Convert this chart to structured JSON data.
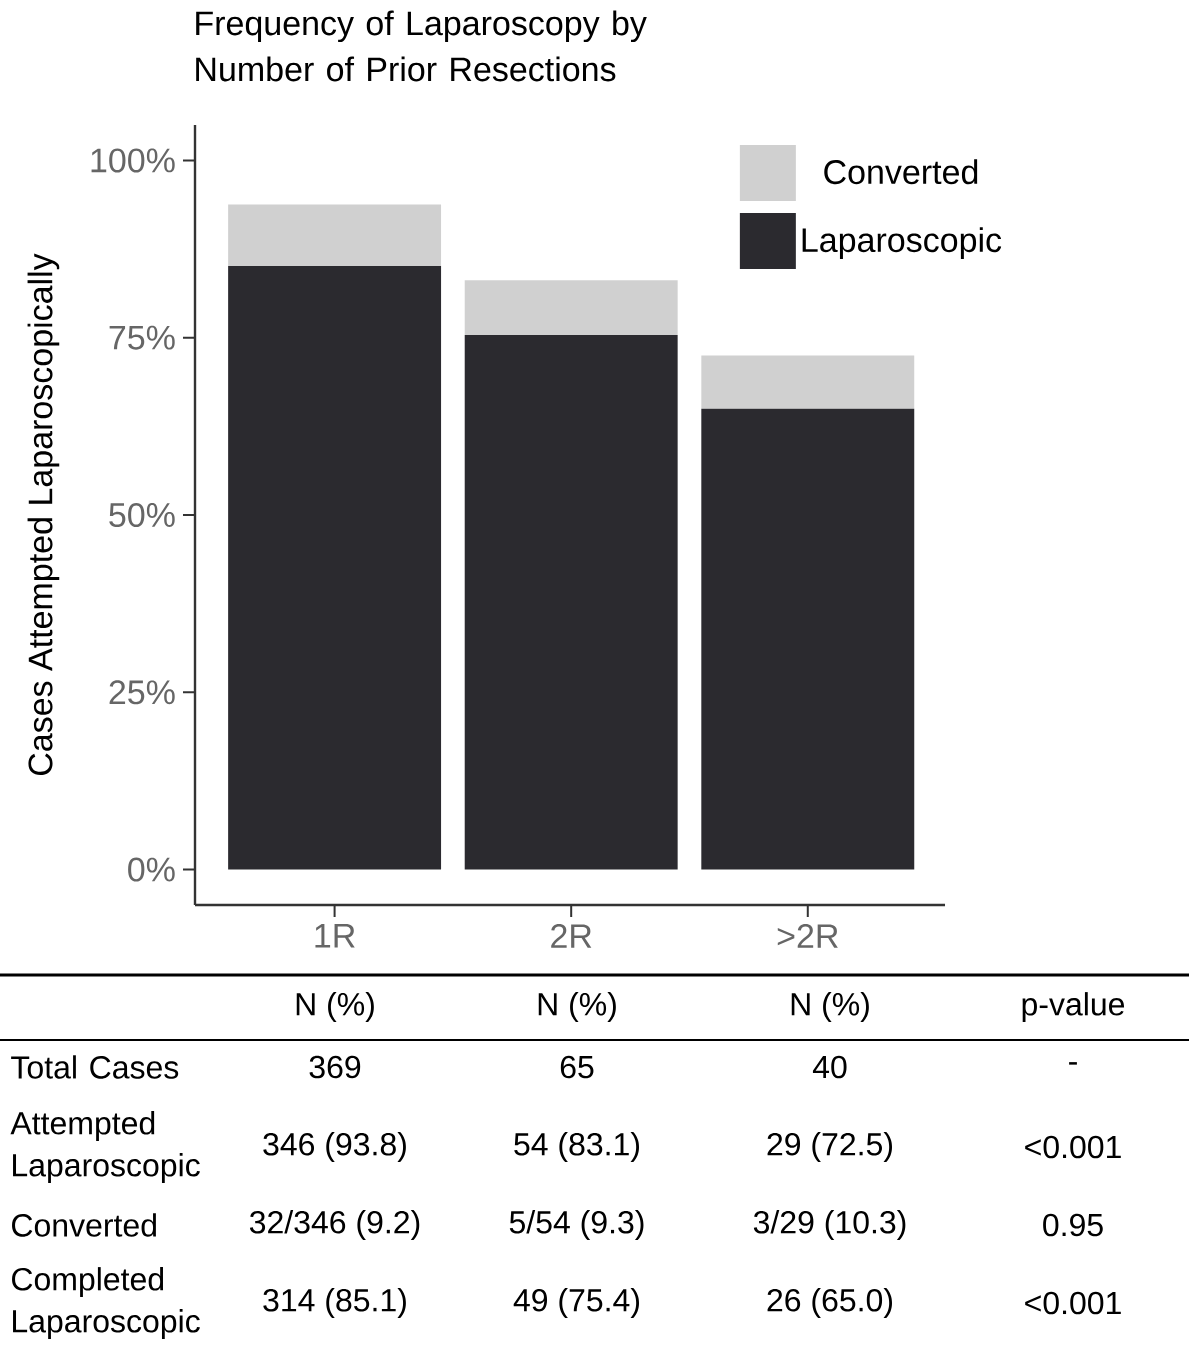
{
  "chart_data": {
    "type": "bar",
    "title": "Frequency of Laparoscopy by Number of Prior Resections",
    "ylabel": "Cases Attempted Laparoscopically",
    "categories": [
      "1R",
      "2R",
      ">2R"
    ],
    "stacked": true,
    "series": [
      {
        "name": "Laparoscopic",
        "color": "#2b2a2f",
        "values": [
          85.1,
          75.4,
          65.0
        ]
      },
      {
        "name": "Converted",
        "color": "#d0d0d0",
        "values": [
          8.7,
          7.7,
          7.5
        ]
      }
    ],
    "ylim": [
      -5,
      105
    ],
    "yticks": [
      {
        "value": 0,
        "label": "0%"
      },
      {
        "value": 25,
        "label": "25%"
      },
      {
        "value": 50,
        "label": "50%"
      },
      {
        "value": 75,
        "label": "75%"
      },
      {
        "value": 100,
        "label": "100%"
      }
    ],
    "grid": false,
    "legend": "top right",
    "annotations": [
      "N (%)",
      "N (%)",
      "N (%)",
      "p-value",
      "Total Cases",
      "369",
      "65",
      "40",
      "-",
      "Attempted Laparoscopic",
      "346 (93.8)",
      "54 (83.1)",
      "29 (72.5)",
      "<0.001",
      "Converted",
      "32/346 (9.2)",
      "5/54 (9.3)",
      "3/29 (10.3)",
      "0.95",
      "Completed Laparoscopic",
      "314 (85.1)",
      "49 (75.4)",
      "26 (65.0)",
      "<0.001"
    ]
  }
}
